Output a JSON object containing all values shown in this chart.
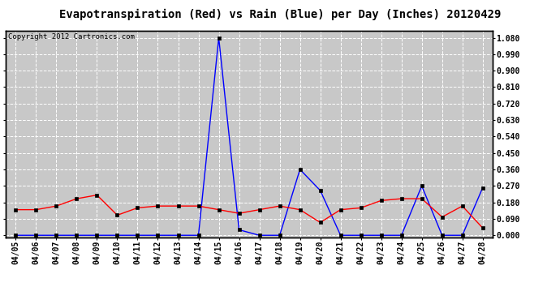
{
  "title": "Evapotranspiration (Red) vs Rain (Blue) per Day (Inches) 20120429",
  "copyright": "Copyright 2012 Cartronics.com",
  "x_labels": [
    "04/05",
    "04/06",
    "04/07",
    "04/08",
    "04/09",
    "04/10",
    "04/11",
    "04/12",
    "04/13",
    "04/14",
    "04/15",
    "04/16",
    "04/17",
    "04/18",
    "04/19",
    "04/20",
    "04/21",
    "04/22",
    "04/23",
    "04/24",
    "04/25",
    "04/26",
    "04/27",
    "04/28"
  ],
  "rain_blue": [
    0.0,
    0.0,
    0.0,
    0.0,
    0.0,
    0.0,
    0.0,
    0.0,
    0.0,
    0.0,
    1.08,
    0.03,
    0.0,
    0.0,
    0.36,
    0.245,
    0.0,
    0.0,
    0.0,
    0.0,
    0.27,
    0.0,
    0.0,
    0.26
  ],
  "et_red": [
    0.14,
    0.14,
    0.16,
    0.2,
    0.22,
    0.11,
    0.15,
    0.16,
    0.16,
    0.16,
    0.14,
    0.12,
    0.14,
    0.16,
    0.14,
    0.07,
    0.14,
    0.15,
    0.19,
    0.2,
    0.2,
    0.1,
    0.16,
    0.04
  ],
  "y_ticks": [
    0.0,
    0.09,
    0.18,
    0.27,
    0.36,
    0.45,
    0.54,
    0.63,
    0.72,
    0.81,
    0.9,
    0.99,
    1.08
  ],
  "blue_color": "#0000FF",
  "red_color": "#FF0000",
  "bg_color": "#FFFFFF",
  "plot_bg_color": "#C8C8C8",
  "grid_color": "#FFFFFF",
  "title_fontsize": 10,
  "copyright_fontsize": 6.5,
  "tick_fontsize": 7
}
